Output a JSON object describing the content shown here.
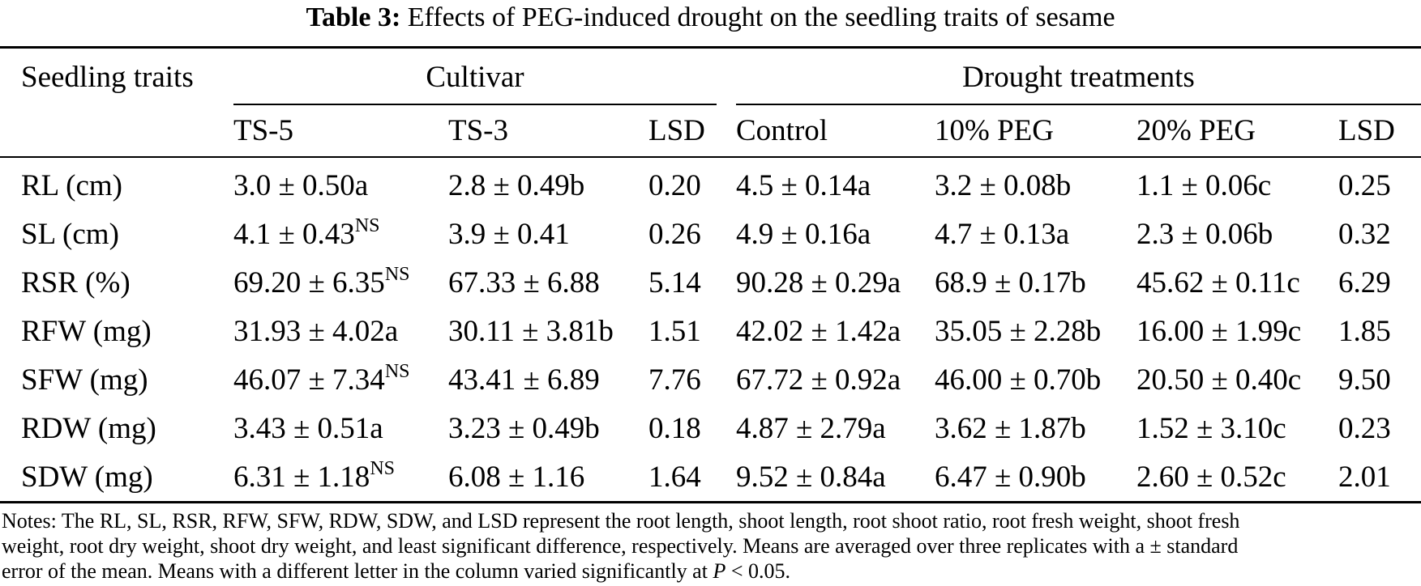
{
  "title": {
    "label": "Table 3:",
    "text": "Effects of PEG-induced drought on the seedling traits of sesame"
  },
  "header": {
    "traits": "Seedling traits",
    "cultivar": "Cultivar",
    "drought": "Drought treatments",
    "columns": [
      "TS-5",
      "TS-3",
      "LSD",
      "Control",
      "10% PEG",
      "20% PEG",
      "LSD"
    ]
  },
  "rows": [
    {
      "trait": "RL (cm)",
      "ts5": "3.0 ± 0.50a",
      "ts5_sup": "",
      "ts3": "2.8 ± 0.49b",
      "lsd1": "0.20",
      "control": "4.5 ± 0.14a",
      "peg10": "3.2 ± 0.08b",
      "peg20": "1.1 ± 0.06c",
      "lsd2": "0.25"
    },
    {
      "trait": "SL (cm)",
      "ts5": "4.1 ± 0.43",
      "ts5_sup": "NS",
      "ts3": "3.9 ± 0.41",
      "lsd1": "0.26",
      "control": "4.9 ± 0.16a",
      "peg10": "4.7 ± 0.13a",
      "peg20": "2.3 ± 0.06b",
      "lsd2": "0.32"
    },
    {
      "trait": "RSR (%)",
      "ts5": "69.20 ± 6.35",
      "ts5_sup": "NS",
      "ts3": "67.33 ± 6.88",
      "lsd1": "5.14",
      "control": "90.28 ± 0.29a",
      "peg10": "68.9 ± 0.17b",
      "peg20": "45.62 ± 0.11c",
      "lsd2": "6.29"
    },
    {
      "trait": "RFW (mg)",
      "ts5": "31.93 ± 4.02a",
      "ts5_sup": "",
      "ts3": "30.11 ± 3.81b",
      "lsd1": "1.51",
      "control": "42.02 ± 1.42a",
      "peg10": "35.05 ± 2.28b",
      "peg20": "16.00 ± 1.99c",
      "lsd2": "1.85"
    },
    {
      "trait": "SFW (mg)",
      "ts5": "46.07 ± 7.34",
      "ts5_sup": "NS",
      "ts3": "43.41 ± 6.89",
      "lsd1": "7.76",
      "control": "67.72 ± 0.92a",
      "peg10": "46.00 ± 0.70b",
      "peg20": "20.50 ± 0.40c",
      "lsd2": "9.50"
    },
    {
      "trait": "RDW (mg)",
      "ts5": "3.43 ± 0.51a",
      "ts5_sup": "",
      "ts3": "3.23 ± 0.49b",
      "lsd1": "0.18",
      "control": "4.87 ± 2.79a",
      "peg10": "3.62 ± 1.87b",
      "peg20": "1.52 ± 3.10c",
      "lsd2": "0.23"
    },
    {
      "trait": "SDW (mg)",
      "ts5": "6.31 ± 1.18",
      "ts5_sup": "NS",
      "ts3": "6.08 ± 1.16",
      "lsd1": "1.64",
      "control": "9.52 ± 0.84a",
      "peg10": "6.47 ± 0.90b",
      "peg20": "2.60 ± 0.52c",
      "lsd2": "2.01"
    }
  ],
  "notes": {
    "line1": "Notes: The RL, SL, RSR, RFW, SFW, RDW, SDW, and LSD represent the root length, shoot length, root shoot ratio, root fresh weight, shoot fresh",
    "line2": "weight, root dry weight, shoot dry weight, and least significant difference, respectively. Means are averaged over three replicates with a ± standard",
    "line3_pre": "error of the mean. Means with a different letter in the column varied significantly at",
    "line3_var": "P",
    "line3_post": "< 0.05."
  }
}
